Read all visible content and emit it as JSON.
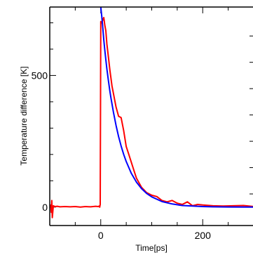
{
  "chart_data": {
    "type": "line",
    "title": "",
    "xlabel": "Time[ps]",
    "ylabel": "Temperature difference [K]",
    "xlim": [
      -100,
      300
    ],
    "ylim": [
      -70,
      760
    ],
    "x_ticks": [
      0,
      200
    ],
    "x_tick_labels": [
      "0",
      "200"
    ],
    "y_ticks": [
      0,
      500
    ],
    "y_tick_labels": [
      "0",
      "500"
    ],
    "x_minor_ticks": [
      -50,
      50,
      100,
      150,
      250
    ],
    "y_minor_ticks": [
      100,
      200,
      300,
      400,
      600,
      700
    ],
    "grid": false,
    "legend": "none",
    "series": [
      {
        "color": "#ff0000",
        "style": "noisy measured data",
        "x": [
          -98,
          -97,
          -96,
          -95,
          -93,
          -90,
          -85,
          -80,
          -70,
          -60,
          -50,
          -40,
          -30,
          -20,
          -10,
          -5,
          -3,
          -2,
          -1,
          0,
          2,
          4,
          6,
          8,
          10,
          12,
          15,
          18,
          22,
          26,
          30,
          35,
          40,
          45,
          50,
          55,
          60,
          65,
          70,
          80,
          90,
          100,
          110,
          120,
          130,
          140,
          150,
          160,
          170,
          180,
          190,
          200,
          220,
          240,
          260,
          280,
          300
        ],
        "y": [
          10,
          -20,
          25,
          -40,
          5,
          2,
          3,
          1,
          2,
          1,
          2,
          0,
          2,
          1,
          3,
          2,
          4,
          0,
          10,
          705,
          700,
          712,
          720,
          690,
          670,
          620,
          570,
          520,
          460,
          420,
          380,
          345,
          340,
          290,
          230,
          200,
          170,
          140,
          110,
          75,
          55,
          45,
          40,
          25,
          20,
          25,
          15,
          10,
          20,
          5,
          10,
          8,
          5,
          4,
          5,
          6,
          2
        ]
      },
      {
        "color": "#0000ff",
        "style": "smooth exponential decay fit",
        "x": [
          0,
          2,
          4,
          6,
          8,
          10,
          12,
          15,
          18,
          20,
          25,
          30,
          35,
          40,
          45,
          50,
          60,
          70,
          80,
          90,
          100,
          120,
          140,
          160,
          180,
          200,
          220,
          250,
          300
        ],
        "y": [
          760,
          725,
          680,
          635,
          595,
          560,
          525,
          480,
          440,
          415,
          360,
          310,
          268,
          232,
          200,
          173,
          128,
          95,
          70,
          52,
          39,
          21,
          12,
          6,
          4,
          2,
          1,
          0.5,
          0
        ]
      }
    ]
  }
}
